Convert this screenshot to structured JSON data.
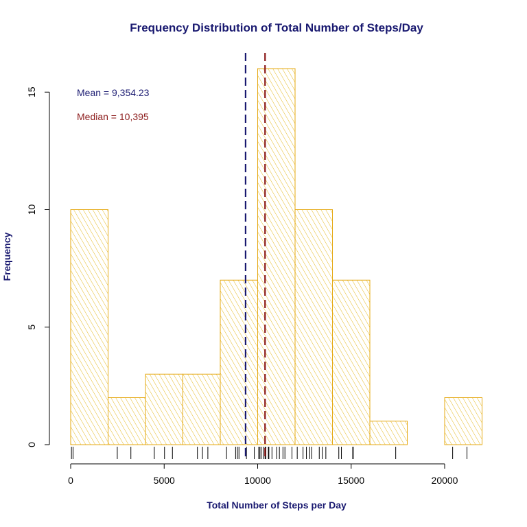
{
  "chart_data": {
    "type": "bar",
    "title": "Frequency Distribution of Total Number of Steps/Day",
    "xlabel": "Total Number of Steps per Day",
    "ylabel": "Frequency",
    "xlim": [
      0,
      22000
    ],
    "ylim": [
      0,
      16
    ],
    "x_ticks": [
      0,
      5000,
      10000,
      15000,
      20000
    ],
    "y_ticks": [
      0,
      5,
      10,
      15
    ],
    "bins": [
      {
        "from": 0,
        "to": 2000,
        "count": 10
      },
      {
        "from": 2000,
        "to": 4000,
        "count": 2
      },
      {
        "from": 4000,
        "to": 6000,
        "count": 3
      },
      {
        "from": 6000,
        "to": 8000,
        "count": 3
      },
      {
        "from": 8000,
        "to": 10000,
        "count": 7
      },
      {
        "from": 10000,
        "to": 12000,
        "count": 16
      },
      {
        "from": 12000,
        "to": 14000,
        "count": 10
      },
      {
        "from": 14000,
        "to": 16000,
        "count": 7
      },
      {
        "from": 16000,
        "to": 18000,
        "count": 1
      },
      {
        "from": 18000,
        "to": 20000,
        "count": 0
      },
      {
        "from": 20000,
        "to": 22000,
        "count": 2
      }
    ],
    "rug": [
      41,
      126,
      2492,
      3219,
      4472,
      5018,
      5441,
      6778,
      7047,
      7336,
      8334,
      8821,
      8918,
      9000,
      9400,
      9819,
      10056,
      10119,
      10183,
      10304,
      10395,
      10439,
      10571,
      10600,
      10765,
      11015,
      11162,
      11352,
      11458,
      11834,
      12116,
      12426,
      12608,
      12787,
      12883,
      13294,
      13452,
      13646,
      14339,
      14478,
      15084,
      15110,
      17382,
      20427,
      21194
    ],
    "mean": 9354.23,
    "median": 10395,
    "annotations": {
      "mean_label": "Mean = 9,354.23",
      "median_label": "Median = 10,395"
    },
    "colors": {
      "bar_border": "#E5A812",
      "hatch": "#E5B81E",
      "mean_line": "#191970",
      "median_line": "#8B1A1A",
      "title_text": "#191970",
      "axis_title_text": "#191970"
    }
  }
}
